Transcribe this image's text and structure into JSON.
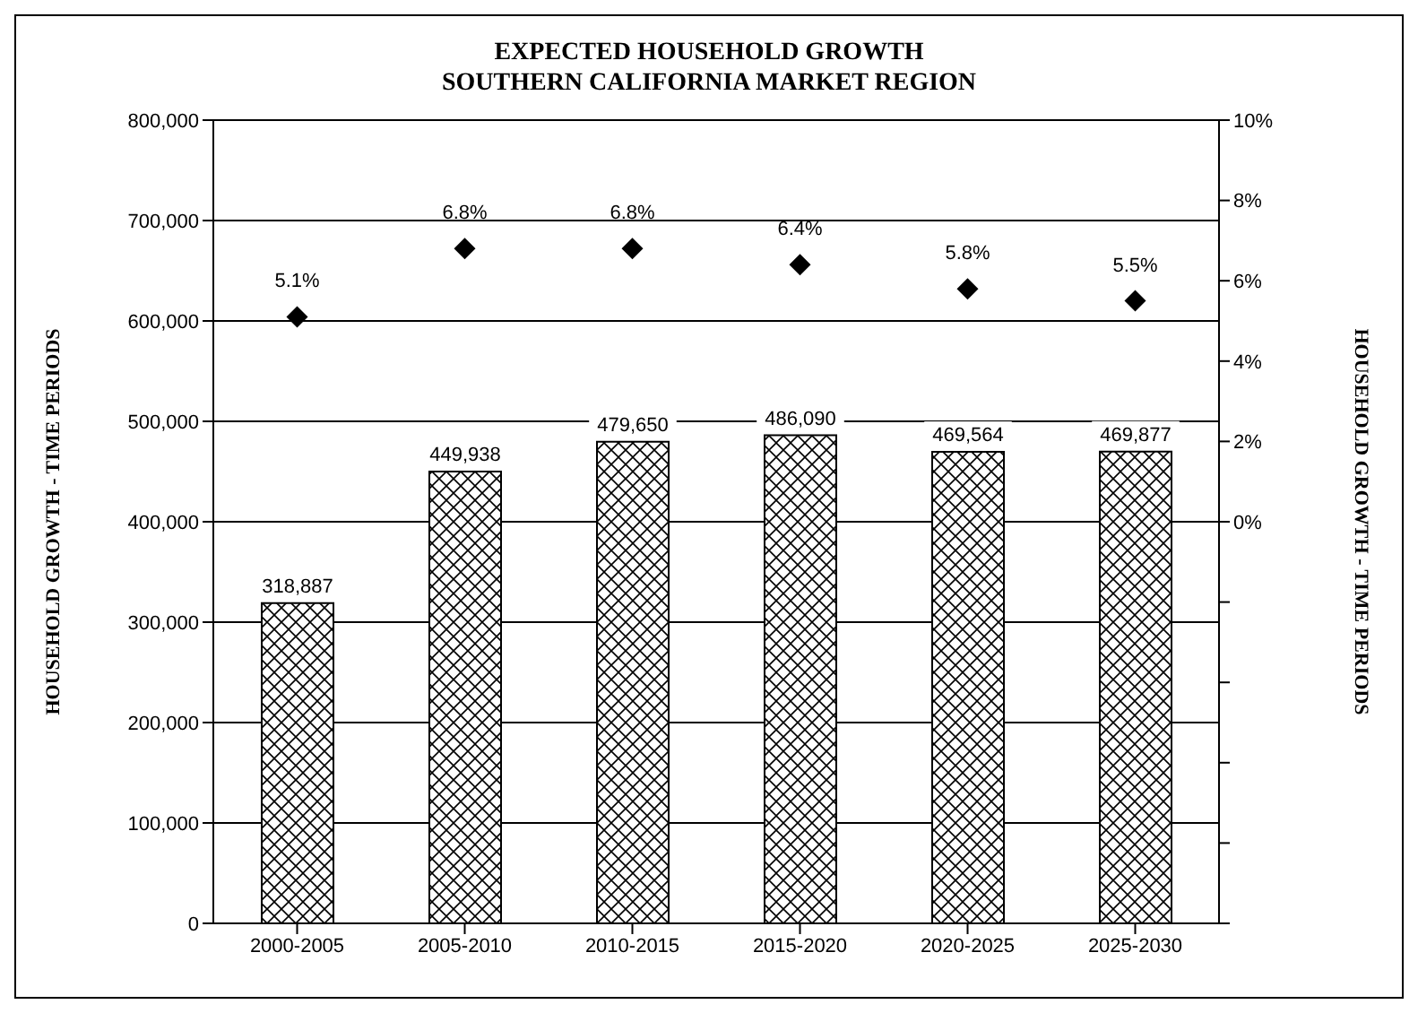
{
  "chart_data": {
    "type": "bar",
    "title": "EXPECTED HOUSEHOLD GROWTH",
    "subtitle": "SOUTHERN CALIFORNIA MARKET REGION",
    "ylabel": "HOUSEHOLD GROWTH - TIME PERIODS",
    "y2label": "HOUSEHOLD GROWTH - TIME PERIODS",
    "categories": [
      "2000-2005",
      "2005-2010",
      "2010-2015",
      "2015-2020",
      "2020-2025",
      "2025-2030"
    ],
    "series": [
      {
        "color": "#000000",
        "values": [
          318887,
          449938,
          479650,
          486090,
          469564,
          469877
        ],
        "value_labels": [
          "318,887",
          "449,938",
          "479,650",
          "486,090",
          "469,564",
          "469,877"
        ]
      },
      {
        "type": "scatter",
        "axis": "y2",
        "color": "#000000",
        "values": [
          5.1,
          6.8,
          6.8,
          6.4,
          5.8,
          5.5
        ],
        "value_labels": [
          "5.1%",
          "6.8%",
          "6.8%",
          "6.4%",
          "5.8%",
          "5.5%"
        ]
      }
    ],
    "ylim": [
      0,
      800000
    ],
    "yticks": [
      0,
      {
        "value": 100000,
        "label": "100,000"
      },
      {
        "value": 200000,
        "label": "200,000"
      },
      {
        "value": 300000,
        "label": "300,000"
      },
      {
        "value": 400000,
        "label": "400,000"
      },
      {
        "value": 500000,
        "label": "500,000"
      },
      {
        "value": 600000,
        "label": "600,000"
      },
      {
        "value": 700000,
        "label": "700,000"
      },
      {
        "value": 800000,
        "label": "800,000"
      }
    ],
    "y2lim": [
      -10,
      10
    ],
    "y2ticks": [
      {
        "value": -10,
        "label": null
      },
      {
        "value": -8,
        "label": null
      },
      {
        "value": -6,
        "label": null
      },
      {
        "value": -4,
        "label": null
      },
      {
        "value": -2,
        "label": null
      },
      {
        "value": 0,
        "label": "0%"
      },
      {
        "value": 2,
        "label": "2%"
      },
      {
        "value": 4,
        "label": "4%"
      },
      {
        "value": 6,
        "label": "6%"
      },
      {
        "value": 8,
        "label": "8%"
      },
      {
        "value": 10,
        "label": "10%"
      }
    ],
    "grid": "y",
    "legend": false,
    "marker": "diamond"
  }
}
